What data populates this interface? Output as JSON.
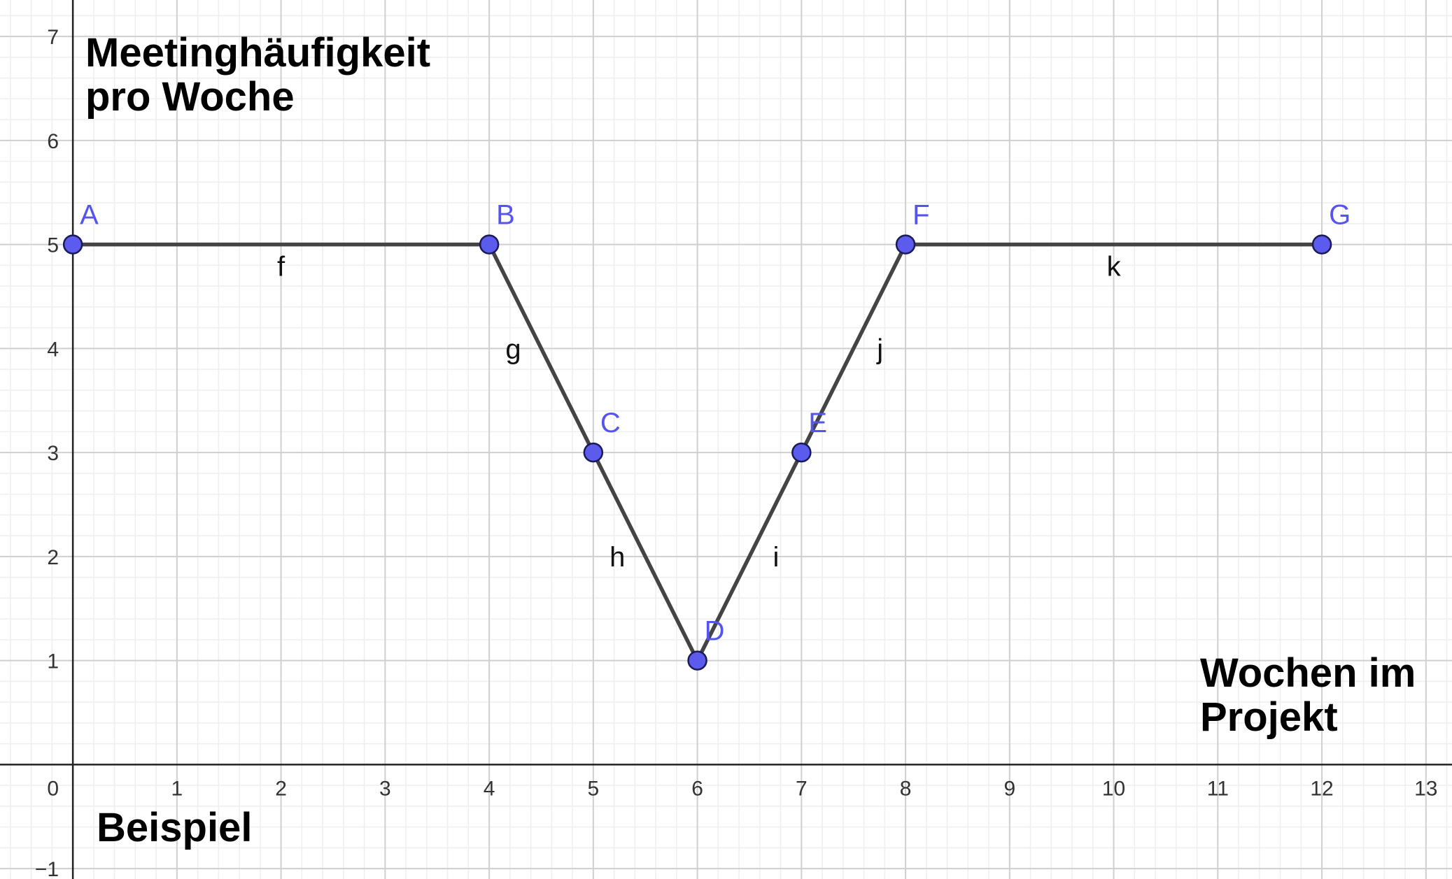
{
  "chart_data": {
    "type": "line",
    "x_ticks": [
      1,
      2,
      3,
      4,
      5,
      6,
      7,
      8,
      9,
      10,
      11,
      12,
      13
    ],
    "y_ticks": [
      -1,
      1,
      2,
      3,
      4,
      5,
      6,
      7
    ],
    "origin_label": "0",
    "xlim": [
      -0.7,
      13.25
    ],
    "ylim": [
      -1.1,
      7.35
    ],
    "grid": true,
    "minor_grid_divisions": 5,
    "line_color": "#444444",
    "point_color": "#5b5bee",
    "label_color": "#5555ee",
    "points": [
      {
        "name": "A",
        "x": 0,
        "y": 5
      },
      {
        "name": "B",
        "x": 4,
        "y": 5
      },
      {
        "name": "C",
        "x": 5,
        "y": 3
      },
      {
        "name": "D",
        "x": 6,
        "y": 1
      },
      {
        "name": "E",
        "x": 7,
        "y": 3
      },
      {
        "name": "F",
        "x": 8,
        "y": 5
      },
      {
        "name": "G",
        "x": 12,
        "y": 5
      }
    ],
    "segments": [
      {
        "name": "f",
        "from": "A",
        "to": "B"
      },
      {
        "name": "g",
        "from": "B",
        "to": "C"
      },
      {
        "name": "h",
        "from": "C",
        "to": "D"
      },
      {
        "name": "i",
        "from": "D",
        "to": "E"
      },
      {
        "name": "j",
        "from": "E",
        "to": "F"
      },
      {
        "name": "k",
        "from": "F",
        "to": "G"
      }
    ],
    "text_labels": {
      "ylabel_line1": "Meetinghäufigkeit",
      "ylabel_line2": "pro Woche",
      "xlabel_line1": "Wochen im",
      "xlabel_line2": "Projekt",
      "caption": "Beispiel"
    }
  }
}
